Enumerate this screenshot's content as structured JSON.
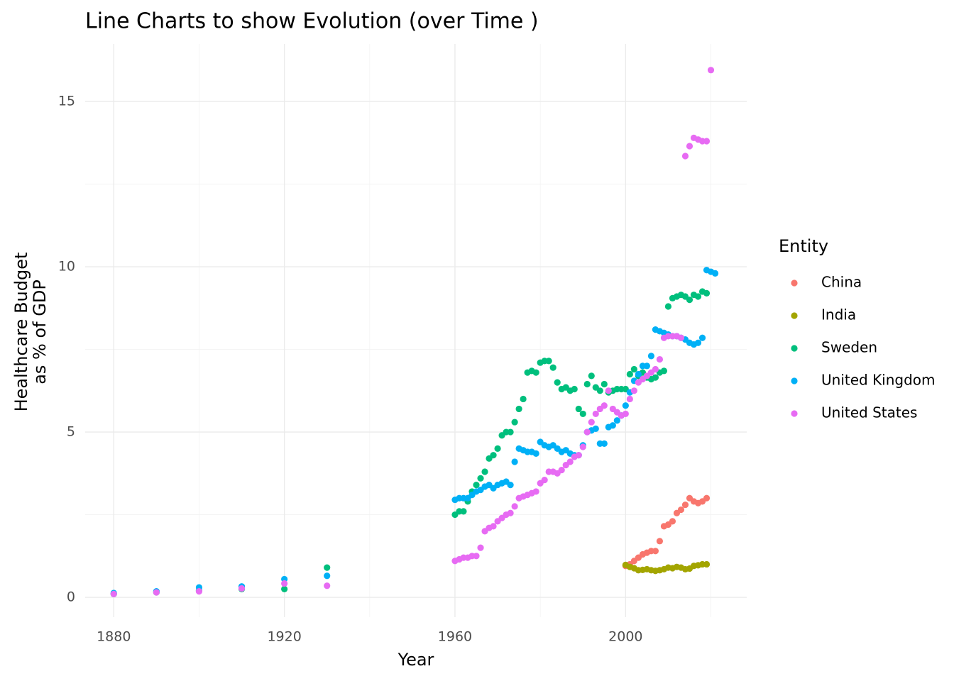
{
  "chart_data": {
    "type": "scatter",
    "title": "Line Charts to show Evolution (over Time )",
    "x_label": "Year",
    "y_label": [
      "Healthcare Budget",
      "as % of GDP"
    ],
    "legend_title": "Entity",
    "legend_position": "right",
    "grid": true,
    "xlim": [
      1873.3,
      2028.4
    ],
    "ylim": [
      -0.6,
      16.74
    ],
    "xticks": [
      1880,
      1920,
      1960,
      2000
    ],
    "yticks": [
      0,
      5,
      10,
      15
    ],
    "minor_xticks": [
      1900,
      1940,
      1980,
      2020
    ],
    "minor_yticks": [
      2.5,
      7.5,
      12.5
    ],
    "series": [
      {
        "name": "China",
        "color": "#F8766D",
        "x": [
          2000,
          2001,
          2002,
          2003,
          2004,
          2005,
          2006,
          2007,
          2008,
          2009,
          2010,
          2011,
          2012,
          2013,
          2014,
          2015,
          2016,
          2017,
          2018,
          2019
        ],
        "values": [
          0.95,
          1.0,
          1.1,
          1.2,
          1.3,
          1.35,
          1.4,
          1.4,
          1.7,
          2.15,
          2.2,
          2.3,
          2.55,
          2.65,
          2.8,
          3.0,
          2.9,
          2.85,
          2.9,
          3.0
        ]
      },
      {
        "name": "India",
        "color": "#A3A500",
        "x": [
          2000,
          2001,
          2002,
          2003,
          2004,
          2005,
          2006,
          2007,
          2008,
          2009,
          2010,
          2011,
          2012,
          2013,
          2014,
          2015,
          2016,
          2017,
          2018,
          2019
        ],
        "values": [
          0.98,
          0.92,
          0.88,
          0.82,
          0.83,
          0.85,
          0.82,
          0.8,
          0.82,
          0.85,
          0.9,
          0.88,
          0.92,
          0.9,
          0.85,
          0.87,
          0.95,
          0.97,
          1.0,
          1.0
        ]
      },
      {
        "name": "Sweden",
        "color": "#00BF7D",
        "x": [
          1880,
          1890,
          1900,
          1910,
          1920,
          1930,
          1960,
          1961,
          1962,
          1963,
          1964,
          1965,
          1966,
          1967,
          1968,
          1969,
          1970,
          1971,
          1972,
          1973,
          1974,
          1975,
          1976,
          1977,
          1978,
          1979,
          1980,
          1981,
          1982,
          1983,
          1984,
          1985,
          1986,
          1987,
          1988,
          1989,
          1990,
          1991,
          1992,
          1993,
          1994,
          1995,
          1996,
          1997,
          1998,
          1999,
          2000,
          2001,
          2002,
          2003,
          2004,
          2005,
          2006,
          2007,
          2008,
          2009,
          2010,
          2011,
          2012,
          2013,
          2014,
          2015,
          2016,
          2017,
          2018,
          2019
        ],
        "values": [
          0.1,
          0.15,
          0.2,
          0.25,
          0.25,
          0.9,
          2.5,
          2.6,
          2.6,
          2.9,
          3.2,
          3.4,
          3.6,
          3.8,
          4.2,
          4.3,
          4.5,
          4.9,
          5.0,
          5.0,
          5.3,
          5.7,
          6.0,
          6.8,
          6.85,
          6.8,
          7.1,
          7.15,
          7.15,
          6.95,
          6.5,
          6.3,
          6.35,
          6.25,
          6.3,
          5.7,
          5.55,
          6.45,
          6.7,
          6.35,
          6.25,
          6.45,
          6.2,
          6.25,
          6.3,
          6.3,
          6.3,
          6.75,
          6.9,
          6.7,
          6.8,
          6.65,
          6.6,
          6.65,
          6.8,
          6.85,
          8.8,
          9.05,
          9.1,
          9.15,
          9.1,
          9.0,
          9.15,
          9.1,
          9.25,
          9.2
        ]
      },
      {
        "name": "United Kingdom",
        "color": "#00B0F6",
        "x": [
          1880,
          1890,
          1900,
          1910,
          1920,
          1930,
          1960,
          1961,
          1962,
          1963,
          1964,
          1965,
          1966,
          1967,
          1968,
          1969,
          1970,
          1971,
          1972,
          1973,
          1974,
          1975,
          1976,
          1977,
          1978,
          1979,
          1980,
          1981,
          1982,
          1983,
          1984,
          1985,
          1986,
          1987,
          1988,
          1989,
          1990,
          1991,
          1992,
          1993,
          1994,
          1995,
          1996,
          1997,
          1998,
          1999,
          2000,
          2001,
          2002,
          2003,
          2004,
          2005,
          2006,
          2007,
          2008,
          2009,
          2010,
          2011,
          2012,
          2013,
          2014,
          2015,
          2016,
          2017,
          2018,
          2019,
          2020,
          2021
        ],
        "values": [
          0.13,
          0.18,
          0.3,
          0.33,
          0.55,
          0.65,
          2.95,
          3.0,
          3.0,
          3.0,
          3.1,
          3.2,
          3.25,
          3.35,
          3.4,
          3.3,
          3.4,
          3.45,
          3.5,
          3.4,
          4.1,
          4.5,
          4.45,
          4.4,
          4.4,
          4.35,
          4.7,
          4.6,
          4.55,
          4.6,
          4.5,
          4.4,
          4.45,
          4.35,
          4.3,
          4.3,
          4.6,
          5.0,
          5.05,
          5.1,
          4.65,
          4.65,
          5.15,
          5.2,
          5.35,
          5.5,
          5.8,
          6.2,
          6.55,
          6.75,
          7.0,
          7.0,
          7.3,
          8.1,
          8.05,
          8.0,
          7.95,
          7.9,
          7.9,
          7.85,
          7.8,
          7.7,
          7.65,
          7.7,
          7.85,
          9.9,
          9.85,
          9.8
        ]
      },
      {
        "name": "United States",
        "color": "#E76BF3",
        "x": [
          1880,
          1890,
          1900,
          1910,
          1920,
          1930,
          1960,
          1961,
          1962,
          1963,
          1964,
          1965,
          1966,
          1967,
          1968,
          1969,
          1970,
          1971,
          1972,
          1973,
          1974,
          1975,
          1976,
          1977,
          1978,
          1979,
          1980,
          1981,
          1982,
          1983,
          1984,
          1985,
          1986,
          1987,
          1988,
          1989,
          1990,
          1991,
          1992,
          1993,
          1994,
          1995,
          1996,
          1997,
          1998,
          1999,
          2000,
          2001,
          2002,
          2003,
          2004,
          2005,
          2006,
          2007,
          2008,
          2009,
          2010,
          2011,
          2012,
          2013,
          2014,
          2015,
          2016,
          2017,
          2018,
          2019,
          2020
        ],
        "values": [
          0.1,
          0.15,
          0.18,
          0.27,
          0.42,
          0.35,
          1.1,
          1.15,
          1.2,
          1.2,
          1.25,
          1.25,
          1.5,
          2.0,
          2.1,
          2.15,
          2.3,
          2.4,
          2.5,
          2.55,
          2.75,
          3.0,
          3.05,
          3.1,
          3.15,
          3.2,
          3.45,
          3.55,
          3.8,
          3.8,
          3.75,
          3.85,
          4.0,
          4.1,
          4.25,
          4.3,
          4.55,
          5.0,
          5.3,
          5.55,
          5.7,
          5.8,
          6.25,
          5.7,
          5.6,
          5.5,
          5.55,
          6.0,
          6.25,
          6.5,
          6.6,
          6.7,
          6.8,
          6.9,
          7.2,
          7.85,
          7.9,
          7.9,
          7.9,
          7.85,
          13.35,
          13.65,
          13.9,
          13.85,
          13.8,
          13.8,
          15.95
        ]
      }
    ]
  }
}
